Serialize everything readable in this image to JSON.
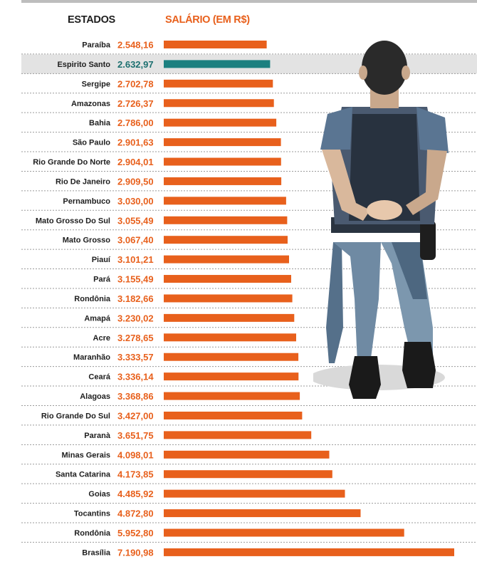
{
  "header": {
    "states_label": "ESTADOS",
    "salary_label": "SALÁRIO (EM R$)"
  },
  "colors": {
    "bar": "#e8601c",
    "highlight_bar": "#1c8080",
    "highlight_value": "#1c7070",
    "value": "#e8601c",
    "label": "#1e1e1e",
    "highlight_row_bg": "#e3e3e3",
    "divider": "#9a9a9a"
  },
  "chart_data": {
    "type": "bar",
    "orientation": "horizontal",
    "title": "",
    "xlabel": "SALÁRIO (EM R$)",
    "ylabel": "ESTADOS",
    "highlight_category": "Espirito Santo",
    "categories": [
      "Paraíba",
      "Espirito Santo",
      "Sergipe",
      "Amazonas",
      "Bahia",
      "São Paulo",
      "Rio Grande Do Norte",
      "Rio De Janeiro",
      "Pernambuco",
      "Mato Grosso Do Sul",
      "Mato Grosso",
      "Piauí",
      "Pará",
      "Rondônia",
      "Amapá",
      "Acre",
      "Maranhão",
      "Ceará",
      "Alagoas",
      "Rio Grande Do Sul",
      "Paranà",
      "Minas Gerais",
      "Santa Catarina",
      "Goias",
      "Tocantins",
      "Rondônia",
      "Brasília"
    ],
    "values": [
      2548.16,
      2632.97,
      2702.78,
      2726.37,
      2786.0,
      2901.63,
      2904.01,
      2909.5,
      3030.0,
      3055.49,
      3067.4,
      3101.21,
      3155.49,
      3182.66,
      3230.02,
      3278.65,
      3333.57,
      3336.14,
      3368.86,
      3427.0,
      3651.75,
      4098.01,
      4173.85,
      4485.92,
      4872.8,
      5952.8,
      7190.98
    ],
    "value_labels": [
      "2.548,16",
      "2.632,97",
      "2.702,78",
      "2.726,37",
      "2.786,00",
      "2.901,63",
      "2.904,01",
      "2.909,50",
      "3.030,00",
      "3.055,49",
      "3.067,40",
      "3.101,21",
      "3.155,49",
      "3.182,66",
      "3.230,02",
      "3.278,65",
      "3.333,57",
      "3.336,14",
      "3.368,86",
      "3.427,00",
      "3.651,75",
      "4.098,01",
      "4.173,85",
      "4.485,92",
      "4.872,80",
      "5.952,80",
      "7.190,98"
    ],
    "xlim": [
      0,
      7190.98
    ],
    "grid": false,
    "legend": "none"
  }
}
